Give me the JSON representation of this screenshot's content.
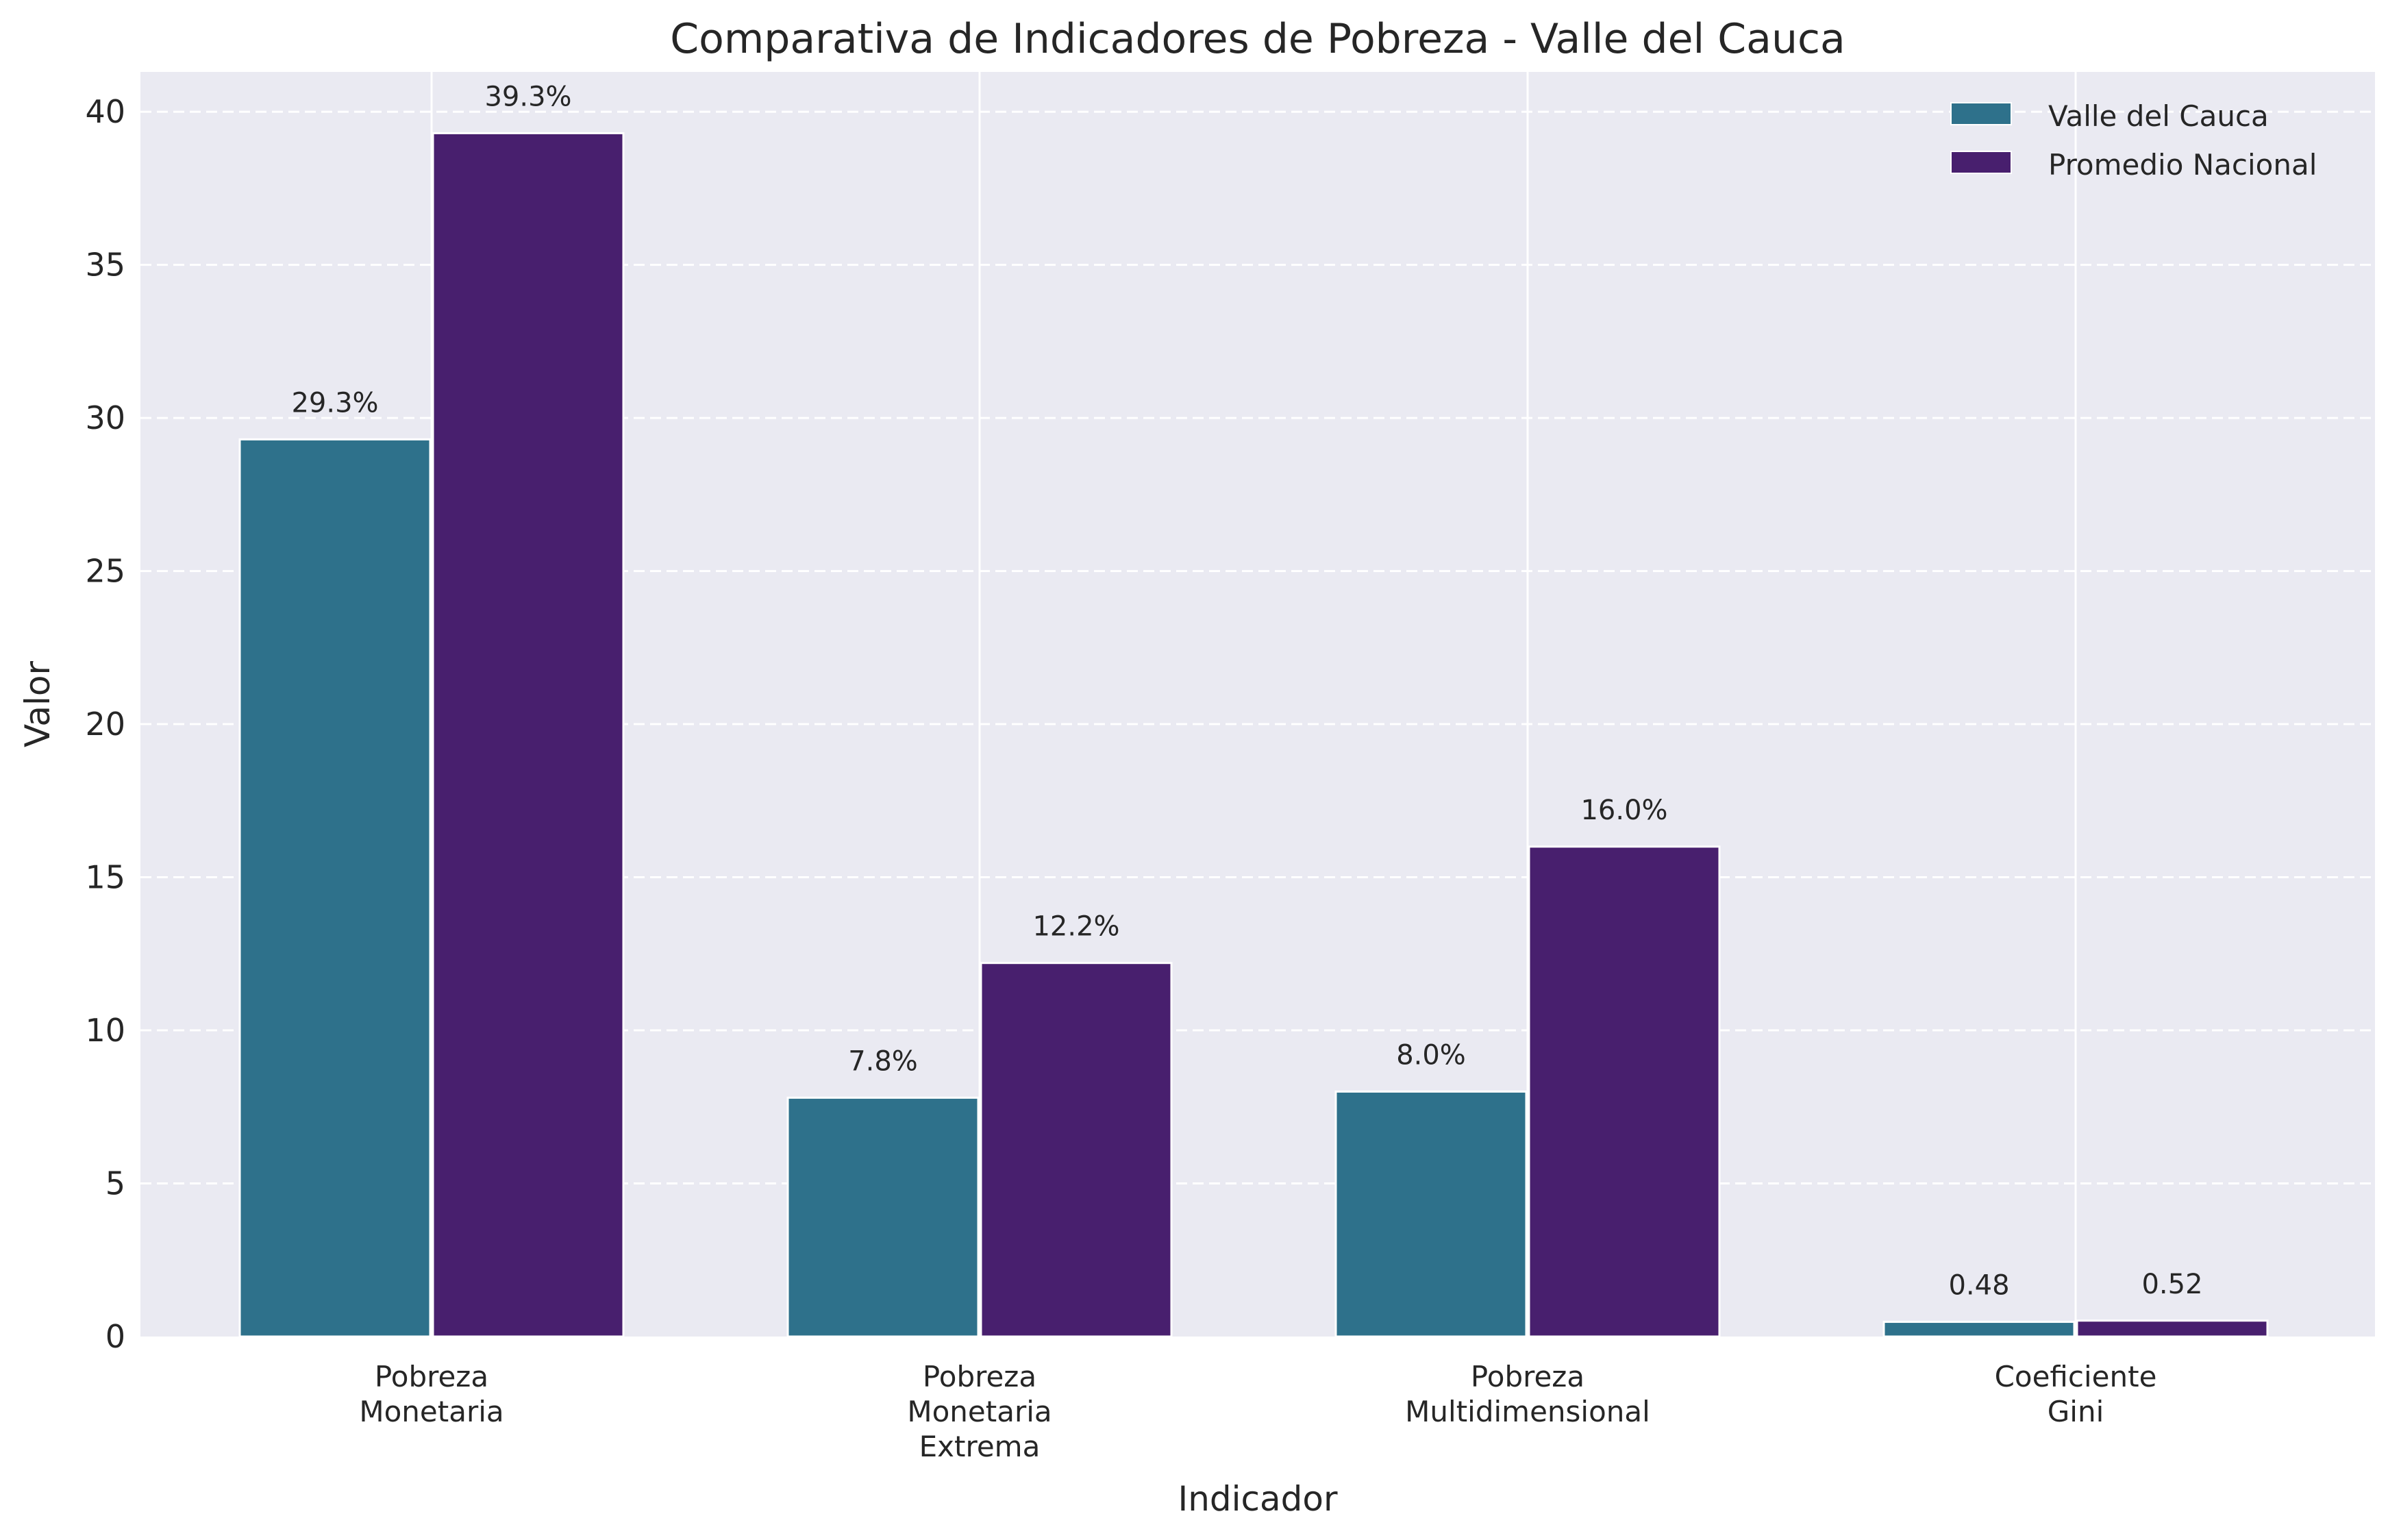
{
  "chart_data": {
    "type": "bar",
    "title": "Comparativa de Indicadores de Pobreza - Valle del Cauca",
    "xlabel": "Indicador",
    "ylabel": "Valor",
    "ylim": [
      0,
      41.3
    ],
    "yticks": [
      0,
      5,
      10,
      15,
      20,
      25,
      30,
      35,
      40
    ],
    "grid": true,
    "legend_position": "top-right",
    "categories": [
      [
        "Pobreza",
        "Monetaria"
      ],
      [
        "Pobreza",
        "Monetaria",
        "Extrema"
      ],
      [
        "Pobreza",
        "Multidimensional"
      ],
      [
        "Coeficiente",
        "Gini"
      ]
    ],
    "series": [
      {
        "name": "Valle del Cauca",
        "color": "#2e718b",
        "values": [
          29.3,
          7.8,
          8.0,
          0.48
        ],
        "labels": [
          "29.3%",
          "7.8%",
          "8.0%",
          "0.48"
        ]
      },
      {
        "name": "Promedio Nacional",
        "color": "#481f6e",
        "values": [
          39.3,
          12.2,
          16.0,
          0.52
        ],
        "labels": [
          "39.3%",
          "12.2%",
          "16.0%",
          "0.52"
        ]
      }
    ]
  }
}
